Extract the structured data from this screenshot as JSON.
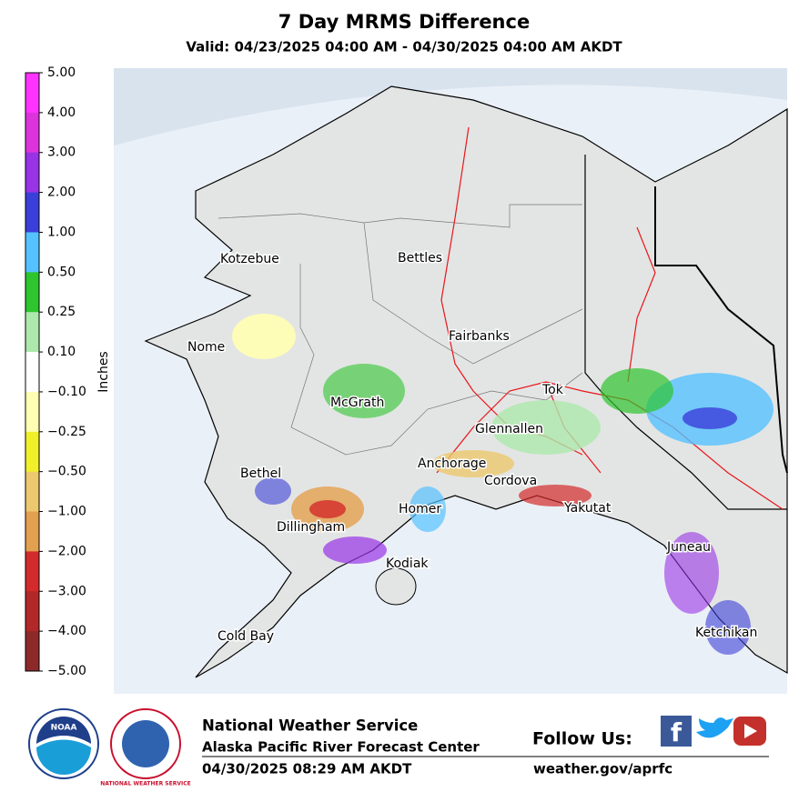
{
  "header": {
    "title": "7 Day MRMS Difference",
    "subtitle": "Valid: 04/23/2025 04:00 AM - 04/30/2025 04:00 AM AKDT"
  },
  "colorbar": {
    "label": "Inches",
    "ticks": [
      "5.00",
      "4.00",
      "3.00",
      "2.00",
      "1.00",
      "0.50",
      "0.25",
      "0.10",
      "−0.10",
      "−0.25",
      "−0.50",
      "−1.00",
      "−2.00",
      "−3.00",
      "−4.00",
      "−5.00"
    ],
    "colors": [
      "#ff33ff",
      "#dd33dd",
      "#9933e6",
      "#3a3fd9",
      "#55c2ff",
      "#2ec52e",
      "#ade8ad",
      "#ffffff",
      "#ffffb3",
      "#f0f02a",
      "#ecc86e",
      "#e3a04e",
      "#d32b2b",
      "#b22828",
      "#8c2a2a"
    ]
  },
  "map": {
    "cities": [
      "Kotzebue",
      "Bettles",
      "Nome",
      "Fairbanks",
      "McGrath",
      "Tok",
      "Glennallen",
      "Bethel",
      "Anchorage",
      "Cordova",
      "Homer",
      "Yakutat",
      "Dillingham",
      "Juneau",
      "Kodiak",
      "Cold Bay",
      "Ketchikan"
    ]
  },
  "logos": {
    "noaa": "NOAA",
    "nws": "NATIONAL WEATHER SERVICE"
  },
  "footer": {
    "org": "National Weather Service",
    "center": "Alaska Pacific River Forecast Center",
    "timestamp": "04/30/2025 08:29 AM AKDT",
    "follow": "Follow Us:",
    "url": "weather.gov/aprfc"
  }
}
